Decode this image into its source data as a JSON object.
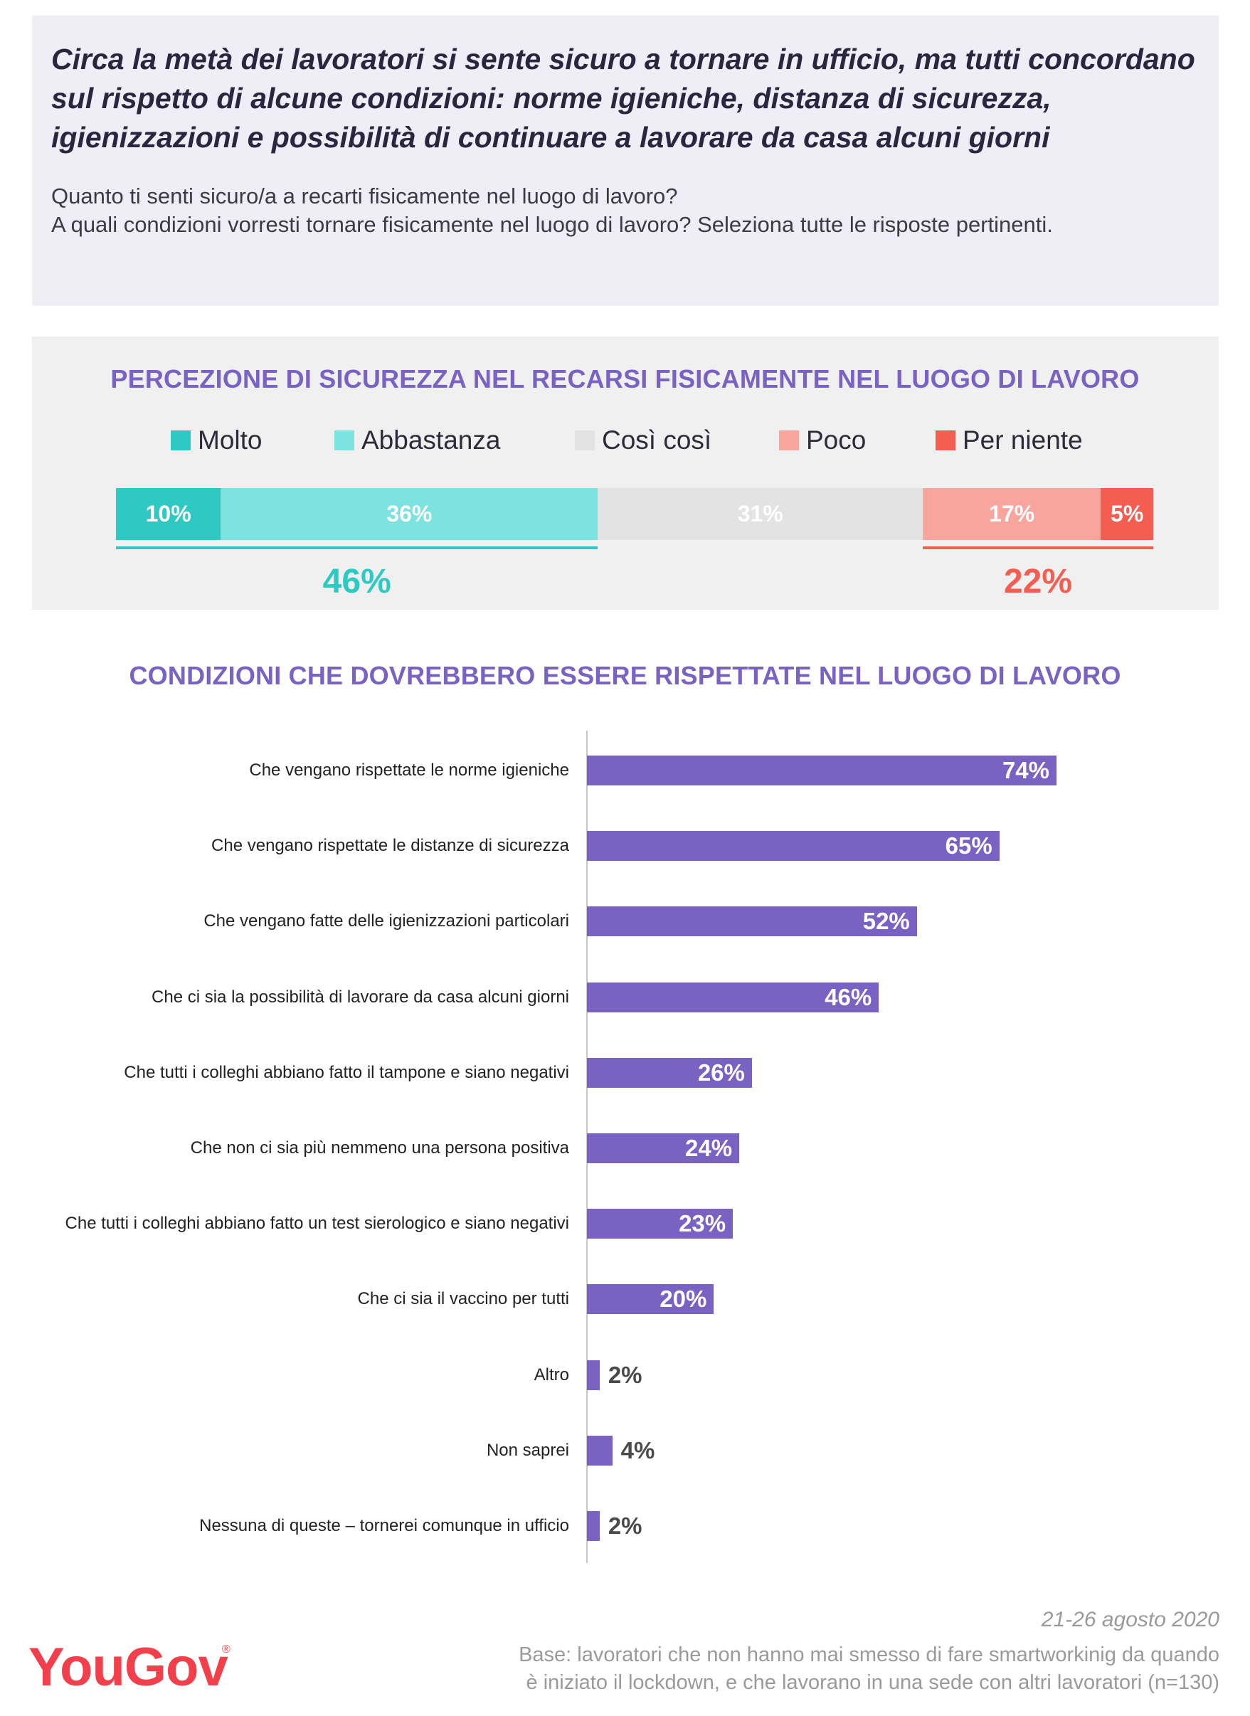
{
  "header": {
    "headline": "Circa la metà dei lavoratori si sente sicuro a tornare in ufficio, ma tutti concordano sul rispetto di alcune condizioni: norme igieniche, distanza di sicurezza, igienizzazioni e possibilità di continuare a lavorare da casa alcuni giorni",
    "question_1": "Quanto ti senti sicuro/a a recarti fisicamente nel luogo di lavoro?",
    "question_2": "A quali condizioni vorresti tornare fisicamente nel luogo di lavoro? Seleziona tutte le risposte pertinenti."
  },
  "chart_data": [
    {
      "type": "bar",
      "orientation": "horizontal-stacked",
      "title": "PERCEZIONE DI SICUREZZA NEL RECARSI FISICAMENTE NEL LUOGO DI LAVORO",
      "legend_position": "top",
      "series": [
        {
          "name": "Molto",
          "value": 10,
          "label": "10%",
          "color": "#2ec9c2"
        },
        {
          "name": "Abbastanza",
          "value": 36,
          "label": "36%",
          "color": "#7de3e0"
        },
        {
          "name": "Così così",
          "value": 31,
          "label": "31%",
          "color": "#e3e3e3"
        },
        {
          "name": "Poco",
          "value": 17,
          "label": "17%",
          "color": "#f8a59e"
        },
        {
          "name": "Per niente",
          "value": 5,
          "label": "5%",
          "color": "#f35e51"
        }
      ],
      "groups": [
        {
          "label": "46%",
          "value": 46,
          "color": "#2ec9c2"
        },
        {
          "label": "22%",
          "value": 22,
          "color": "#f35e51"
        }
      ]
    },
    {
      "type": "bar",
      "orientation": "horizontal",
      "title": "CONDIZIONI CHE DOVREBBERO ESSERE RISPETTATE NEL LUOGO DI LAVORO",
      "categories": [
        "Che vengano rispettate le norme igieniche",
        "Che vengano rispettate le distanze di sicurezza",
        "Che vengano fatte delle igienizzazioni particolari",
        "Che ci sia la possibilità di lavorare da casa alcuni giorni",
        "Che tutti i colleghi abbiano fatto il tampone e siano negativi",
        "Che non ci sia più nemmeno una persona positiva",
        "Che tutti i colleghi abbiano fatto un test sierologico e siano negativi",
        "Che ci sia il vaccino per tutti",
        "Altro",
        "Non saprei",
        "Nessuna di queste – tornerei comunque in ufficio"
      ],
      "values": [
        74,
        65,
        52,
        46,
        26,
        24,
        23,
        20,
        2,
        4,
        2
      ],
      "labels": [
        "74%",
        "65%",
        "52%",
        "46%",
        "26%",
        "24%",
        "23%",
        "20%",
        "2%",
        "4%",
        "2%"
      ],
      "color": "#7a62c2"
    }
  ],
  "footer": {
    "date": "21-26 agosto 2020",
    "base_line_1": "Base: lavoratori che non hanno mai smesso di fare smartworkinig da quando",
    "base_line_2": "è iniziato il lockdown, e che lavorano in una sede con altri lavoratori (n=130)",
    "logo_text": "YouGov",
    "logo_mark": "®"
  }
}
